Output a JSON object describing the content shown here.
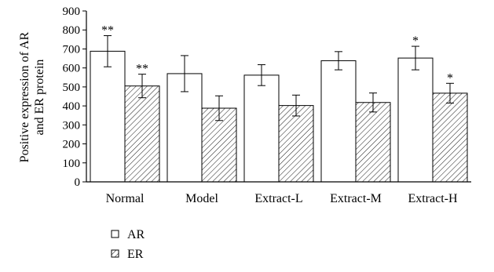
{
  "chart_data": {
    "type": "bar",
    "title": "",
    "xlabel": "",
    "ylabel_lines": [
      "Positive expression of AR",
      "and ER protein"
    ],
    "categories": [
      "Normal",
      "Model",
      "Extract-L",
      "Extract-M",
      "Extract-H"
    ],
    "ylim": [
      0,
      900
    ],
    "yticks": [
      0,
      100,
      200,
      300,
      400,
      500,
      600,
      700,
      800,
      900
    ],
    "grid": false,
    "legend_position": "bottom-left",
    "series": [
      {
        "name": "AR",
        "pattern": "solid-white",
        "values": [
          688,
          570,
          562,
          638,
          652
        ],
        "errors": [
          82,
          95,
          55,
          48,
          62
        ],
        "significance": [
          "**",
          "",
          "",
          "",
          "*"
        ]
      },
      {
        "name": "ER",
        "pattern": "diagonal-hatch",
        "values": [
          505,
          388,
          402,
          418,
          467
        ],
        "errors": [
          62,
          65,
          55,
          50,
          52
        ],
        "significance": [
          "**",
          "",
          "",
          "",
          "*"
        ]
      }
    ]
  }
}
